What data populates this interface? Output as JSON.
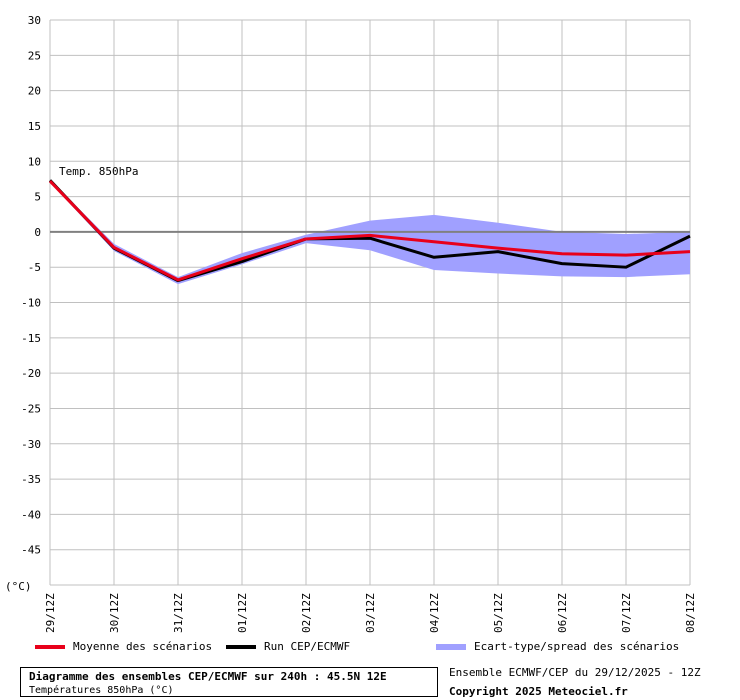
{
  "chart_data": {
    "type": "line",
    "x": [
      "29/12Z",
      "30/12Z",
      "31/12Z",
      "01/12Z",
      "02/12Z",
      "03/12Z",
      "04/12Z",
      "05/12Z",
      "06/12Z",
      "07/12Z",
      "08/12Z"
    ],
    "ylim": [
      -50,
      30
    ],
    "yticks": [
      30,
      25,
      20,
      15,
      10,
      5,
      0,
      -5,
      -10,
      -15,
      -20,
      -25,
      -30,
      -35,
      -40,
      -45
    ],
    "yunit": "(°C)",
    "annotation": "Temp. 850hPa",
    "grid": true,
    "series": [
      {
        "name": "Moyenne des scénarios",
        "color": "#e8001a",
        "values": [
          7.2,
          -2.2,
          -6.8,
          -3.8,
          -1.0,
          -0.5,
          -1.4,
          -2.3,
          -3.1,
          -3.3,
          -2.8
        ]
      },
      {
        "name": "Run CEP/ECMWF",
        "color": "#000000",
        "values": [
          7.3,
          -2.3,
          -6.9,
          -4.2,
          -1.0,
          -0.9,
          -3.6,
          -2.8,
          -4.5,
          -5.0,
          -0.6
        ]
      }
    ],
    "band": {
      "name": "Ecart-type/spread des scénarios",
      "color": "#a0a0ff",
      "upper": [
        7.4,
        -1.7,
        -6.4,
        -3.0,
        -0.4,
        1.6,
        2.4,
        1.3,
        0.0,
        -0.3,
        0.0
      ],
      "lower": [
        7.0,
        -2.7,
        -7.4,
        -4.6,
        -1.6,
        -2.6,
        -5.4,
        -5.9,
        -6.3,
        -6.4,
        -6.0
      ]
    }
  },
  "footer": {
    "title": "Diagramme des ensembles CEP/ECMWF sur 240h : 45.5N 12E",
    "subtitle": "Températures 850hPa (°C)",
    "source": "Ensemble ECMWF/CEP du 29/12/2025 - 12Z",
    "copyright": "Copyright 2025 Meteociel.fr"
  }
}
